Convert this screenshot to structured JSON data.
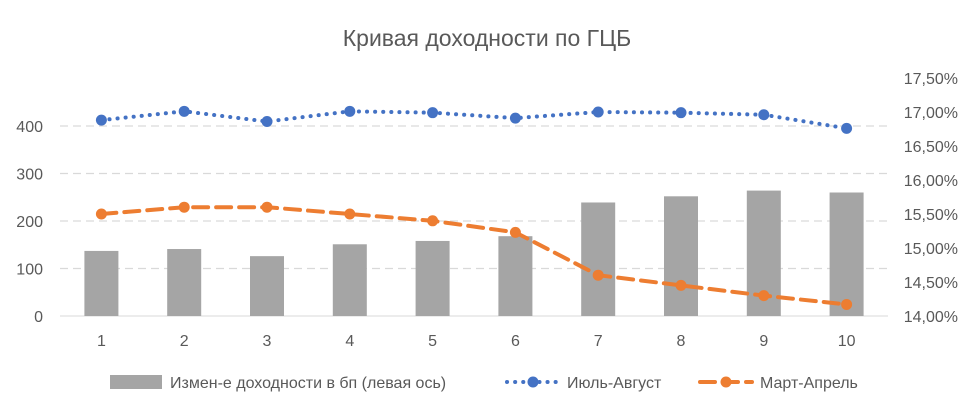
{
  "chart_data": {
    "type": "bar+line",
    "title": "Кривая доходности по ГЦБ",
    "categories": [
      "1",
      "2",
      "3",
      "4",
      "5",
      "6",
      "7",
      "8",
      "9",
      "10"
    ],
    "bars": {
      "name": "Измен-е доходности в бп (левая ось)",
      "axis": "left",
      "color": "#a5a5a5",
      "values": [
        137,
        141,
        126,
        151,
        158,
        168,
        239,
        252,
        264,
        260
      ]
    },
    "series": [
      {
        "name": "Июль-Август",
        "axis": "right",
        "color": "#4472c4",
        "style": "dotted",
        "values": [
          16.88,
          17.01,
          16.86,
          17.01,
          16.99,
          16.91,
          17.0,
          16.99,
          16.96,
          16.76
        ]
      },
      {
        "name": "Март-Апрель",
        "axis": "right",
        "color": "#ed7d31",
        "style": "dashed",
        "values": [
          15.5,
          15.6,
          15.6,
          15.5,
          15.4,
          15.23,
          14.6,
          14.45,
          14.3,
          14.17
        ]
      }
    ],
    "left_axis": {
      "ylim": [
        0,
        400
      ],
      "ticks": [
        "0",
        "100",
        "200",
        "300",
        "400"
      ]
    },
    "right_axis": {
      "ylim": [
        14.0,
        17.5
      ],
      "ticks": [
        "14,00%",
        "14,50%",
        "15,00%",
        "15,50%",
        "16,00%",
        "16,50%",
        "17,00%",
        "17,50%"
      ]
    },
    "grid": true,
    "legend": "bottom"
  }
}
